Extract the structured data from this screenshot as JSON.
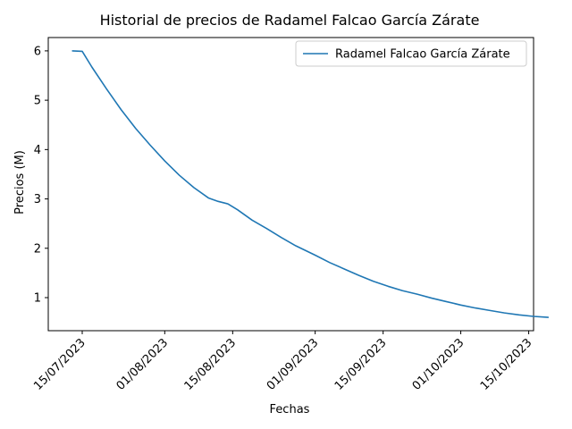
{
  "chart_data": {
    "type": "line",
    "title": "Historial de precios de Radamel Falcao García Zárate",
    "xlabel": "Fechas",
    "ylabel": "Precios (M)",
    "x_ticks": [
      "15/07/2023",
      "01/08/2023",
      "15/08/2023",
      "01/09/2023",
      "15/09/2023",
      "01/10/2023",
      "15/10/2023"
    ],
    "x_tick_dates": [
      "2023-07-15",
      "2023-08-01",
      "2023-08-15",
      "2023-09-01",
      "2023-09-15",
      "2023-10-01",
      "2023-10-15"
    ],
    "xlim": [
      "2023-07-08",
      "2023-10-16"
    ],
    "y_ticks": [
      1,
      2,
      3,
      4,
      5,
      6
    ],
    "ylim": [
      0.33,
      6.27
    ],
    "grid": false,
    "legend_position": "top-right",
    "series": [
      {
        "name": "Radamel Falcao García Zárate",
        "color": "#1f77b4",
        "points": [
          [
            "2023-07-13",
            6.0
          ],
          [
            "2023-07-15",
            5.99
          ],
          [
            "2023-07-17",
            5.67
          ],
          [
            "2023-07-20",
            5.23
          ],
          [
            "2023-07-23",
            4.81
          ],
          [
            "2023-07-26",
            4.43
          ],
          [
            "2023-07-29",
            4.09
          ],
          [
            "2023-08-01",
            3.77
          ],
          [
            "2023-08-04",
            3.48
          ],
          [
            "2023-08-07",
            3.23
          ],
          [
            "2023-08-10",
            3.02
          ],
          [
            "2023-08-12",
            2.95
          ],
          [
            "2023-08-14",
            2.9
          ],
          [
            "2023-08-16",
            2.78
          ],
          [
            "2023-08-19",
            2.57
          ],
          [
            "2023-08-22",
            2.4
          ],
          [
            "2023-08-25",
            2.22
          ],
          [
            "2023-08-28",
            2.05
          ],
          [
            "2023-09-01",
            1.86
          ],
          [
            "2023-09-04",
            1.71
          ],
          [
            "2023-09-07",
            1.58
          ],
          [
            "2023-09-10",
            1.45
          ],
          [
            "2023-09-13",
            1.33
          ],
          [
            "2023-09-16",
            1.23
          ],
          [
            "2023-09-19",
            1.14
          ],
          [
            "2023-09-22",
            1.07
          ],
          [
            "2023-09-25",
            0.99
          ],
          [
            "2023-09-28",
            0.92
          ],
          [
            "2023-10-01",
            0.85
          ],
          [
            "2023-10-04",
            0.79
          ],
          [
            "2023-10-07",
            0.74
          ],
          [
            "2023-10-10",
            0.69
          ],
          [
            "2023-10-13",
            0.65
          ],
          [
            "2023-10-16",
            0.62
          ],
          [
            "2023-10-19",
            0.6
          ]
        ]
      }
    ]
  }
}
